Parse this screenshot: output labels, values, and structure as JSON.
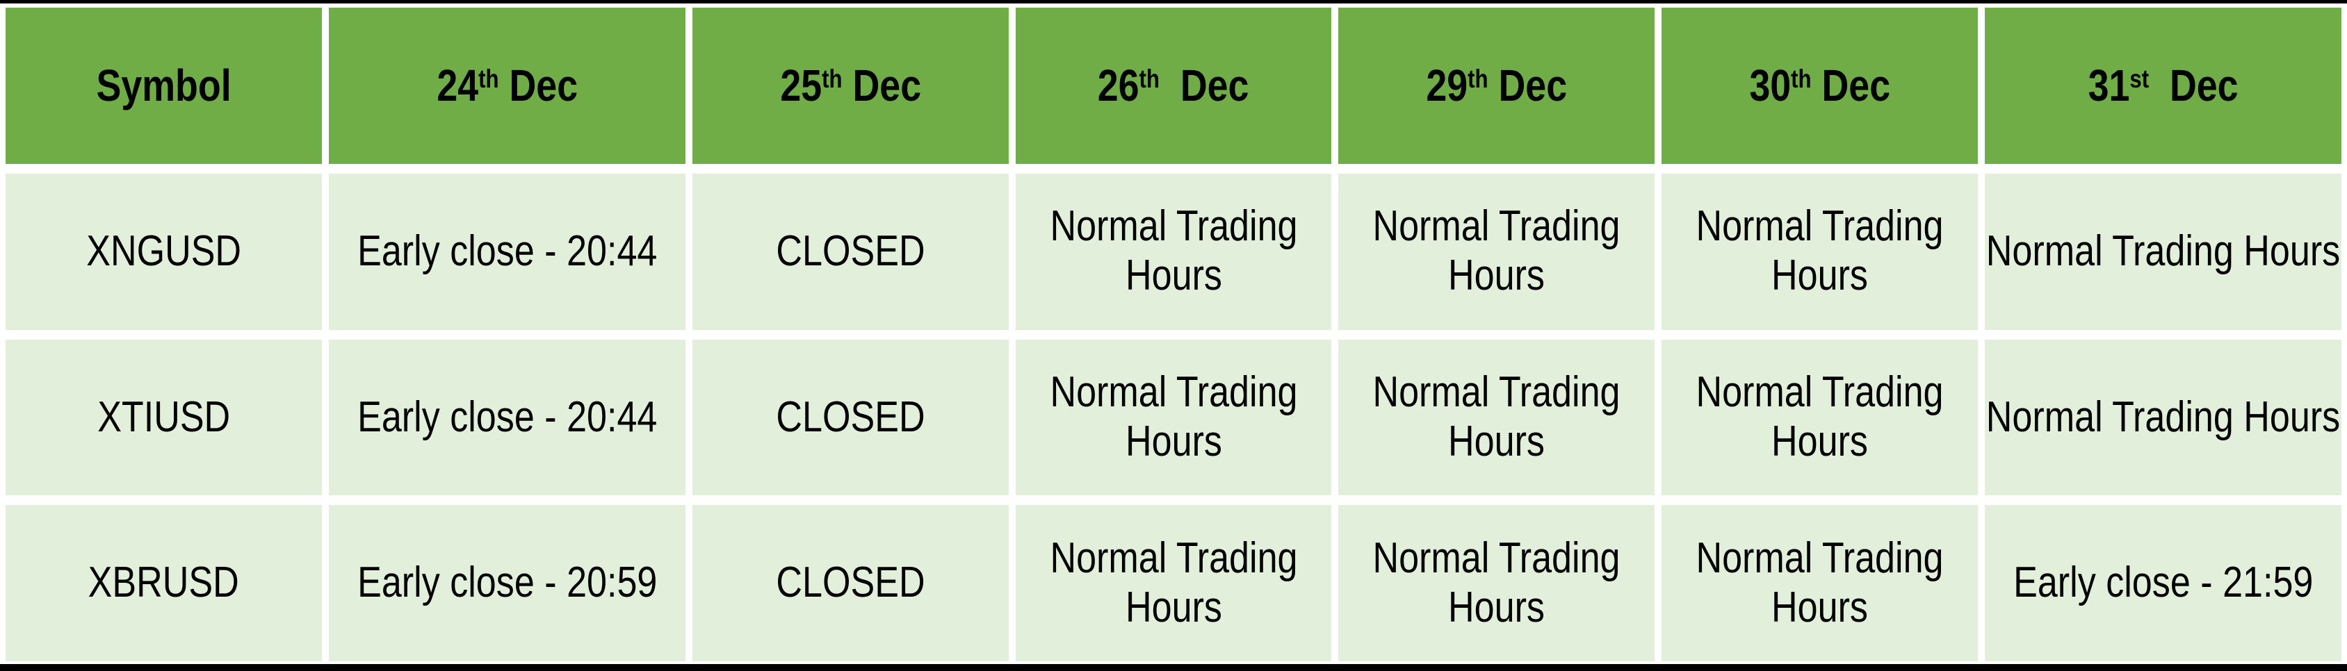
{
  "table": {
    "header": {
      "symbol_label": "Symbol",
      "dates": [
        {
          "day": "24",
          "suffix": "th",
          "rest": " Dec"
        },
        {
          "day": "25",
          "suffix": "th",
          "rest": " Dec"
        },
        {
          "day": "26",
          "suffix": "th",
          "rest": "  Dec"
        },
        {
          "day": "29",
          "suffix": "th",
          "rest": " Dec"
        },
        {
          "day": "30",
          "suffix": "th",
          "rest": " Dec"
        },
        {
          "day": "31",
          "suffix": "st",
          "rest": "  Dec"
        }
      ]
    },
    "rows": [
      {
        "symbol": "XNGUSD",
        "cells": [
          "Early close - 20:44",
          "CLOSED",
          "Normal Trading Hours",
          "Normal Trading Hours",
          "Normal Trading Hours",
          "Normal Trading Hours"
        ]
      },
      {
        "symbol": "XTIUSD",
        "cells": [
          "Early close - 20:44",
          "CLOSED",
          "Normal Trading Hours",
          "Normal Trading Hours",
          "Normal Trading Hours",
          "Normal Trading Hours"
        ]
      },
      {
        "symbol": "XBRUSD",
        "cells": [
          "Early close - 20:59",
          "CLOSED",
          "Normal Trading Hours",
          "Normal Trading Hours",
          "Normal Trading Hours",
          "Early close - 21:59"
        ]
      }
    ]
  },
  "colors": {
    "header_bg": "#70AD47",
    "cell_bg": "#E2EFDA",
    "gap": "#FFFFFF",
    "border": "#000000",
    "text": "#000000"
  }
}
